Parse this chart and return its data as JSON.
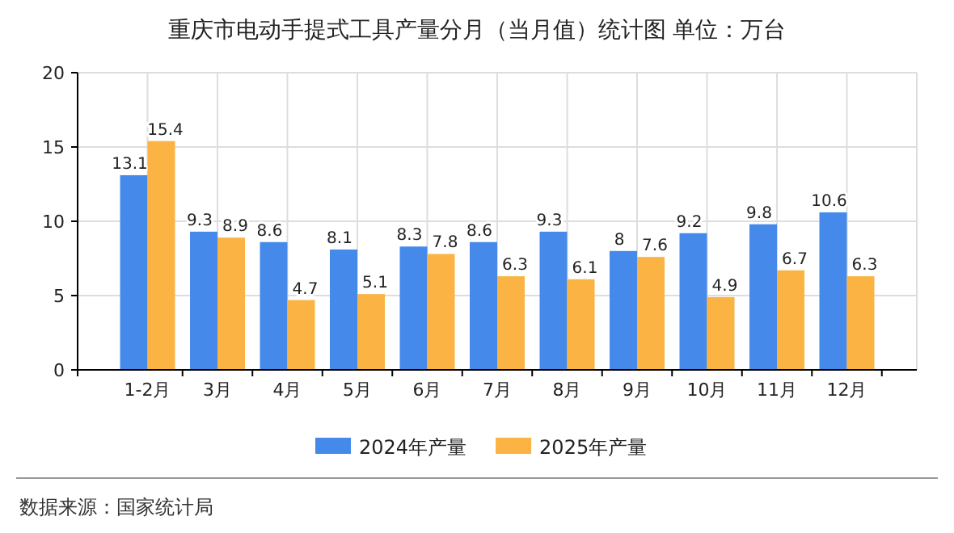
{
  "chart_data": {
    "type": "bar",
    "title": "重庆市电动手提式工具产量分月（当月值）统计图 单位：万台",
    "categories": [
      "1-2月",
      "3月",
      "4月",
      "5月",
      "6月",
      "7月",
      "8月",
      "9月",
      "10月",
      "11月",
      "12月"
    ],
    "series": [
      {
        "name": "2024年产量",
        "color": "#4589ea",
        "values": [
          13.1,
          9.3,
          8.6,
          8.1,
          8.3,
          8.6,
          9.3,
          8,
          9.2,
          9.8,
          10.6
        ]
      },
      {
        "name": "2025年产量",
        "color": "#fbb443",
        "values": [
          15.4,
          8.9,
          4.7,
          5.1,
          7.8,
          6.3,
          6.1,
          7.6,
          4.9,
          6.7,
          6.3
        ]
      }
    ],
    "ylim": [
      0,
      20
    ],
    "yticks": [
      0,
      5,
      10,
      15,
      20
    ],
    "grid": true,
    "legend": "bottom",
    "data_labels": true,
    "annotations": [
      "数据来源：国家统计局"
    ]
  }
}
